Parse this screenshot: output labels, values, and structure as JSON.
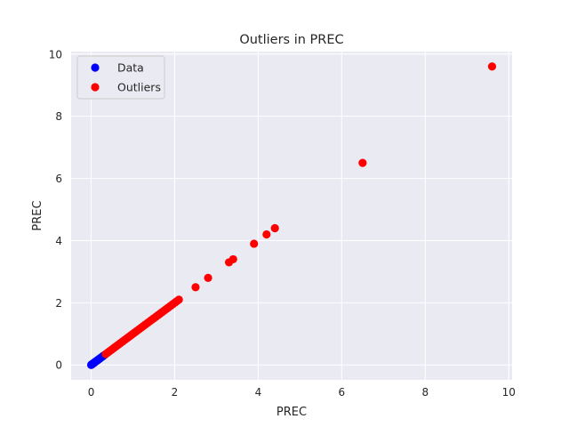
{
  "chart_data": {
    "type": "scatter",
    "title": "Outliers in PREC",
    "xlabel": "PREC",
    "ylabel": "PREC",
    "xlim": [
      -0.48,
      10.08
    ],
    "ylim": [
      -0.48,
      10.08
    ],
    "xticks": [
      0,
      2,
      4,
      6,
      8,
      10
    ],
    "yticks": [
      0,
      2,
      4,
      6,
      8,
      10
    ],
    "grid": true,
    "legend_position": "top-left",
    "colors": {
      "background": "#eaeaf2",
      "grid": "#ffffff",
      "data": "#0000ff",
      "outliers": "#ff0000"
    },
    "series": [
      {
        "name": "Data",
        "color": "#0000ff",
        "points": [
          [
            0,
            0
          ],
          [
            0.01,
            0.01
          ],
          [
            0.02,
            0.02
          ],
          [
            0.03,
            0.03
          ],
          [
            0.04,
            0.04
          ],
          [
            0.05,
            0.05
          ],
          [
            0.06,
            0.06
          ],
          [
            0.07,
            0.07
          ],
          [
            0.08,
            0.08
          ],
          [
            0.1,
            0.1
          ],
          [
            0.12,
            0.12
          ],
          [
            0.14,
            0.14
          ],
          [
            0.16,
            0.16
          ],
          [
            0.18,
            0.18
          ],
          [
            0.2,
            0.2
          ],
          [
            0.22,
            0.22
          ],
          [
            0.25,
            0.25
          ],
          [
            0.28,
            0.28
          ],
          [
            0.31,
            0.31
          ]
        ]
      },
      {
        "name": "Outliers",
        "color": "#ff0000",
        "points": [
          [
            0.35,
            0.35
          ],
          [
            0.4,
            0.4
          ],
          [
            0.45,
            0.45
          ],
          [
            0.5,
            0.5
          ],
          [
            0.55,
            0.55
          ],
          [
            0.6,
            0.6
          ],
          [
            0.65,
            0.65
          ],
          [
            0.7,
            0.7
          ],
          [
            0.75,
            0.75
          ],
          [
            0.8,
            0.8
          ],
          [
            0.85,
            0.85
          ],
          [
            0.9,
            0.9
          ],
          [
            0.95,
            0.95
          ],
          [
            1.0,
            1.0
          ],
          [
            1.05,
            1.05
          ],
          [
            1.1,
            1.1
          ],
          [
            1.15,
            1.15
          ],
          [
            1.2,
            1.2
          ],
          [
            1.25,
            1.25
          ],
          [
            1.3,
            1.3
          ],
          [
            1.35,
            1.35
          ],
          [
            1.4,
            1.4
          ],
          [
            1.45,
            1.45
          ],
          [
            1.5,
            1.5
          ],
          [
            1.55,
            1.55
          ],
          [
            1.6,
            1.6
          ],
          [
            1.65,
            1.65
          ],
          [
            1.7,
            1.7
          ],
          [
            1.75,
            1.75
          ],
          [
            1.8,
            1.8
          ],
          [
            1.85,
            1.85
          ],
          [
            1.9,
            1.9
          ],
          [
            1.95,
            1.95
          ],
          [
            2.0,
            2.0
          ],
          [
            2.05,
            2.05
          ],
          [
            2.1,
            2.1
          ],
          [
            2.5,
            2.5
          ],
          [
            2.8,
            2.8
          ],
          [
            3.3,
            3.3
          ],
          [
            3.4,
            3.4
          ],
          [
            3.9,
            3.9
          ],
          [
            4.2,
            4.2
          ],
          [
            4.4,
            4.4
          ],
          [
            6.5,
            6.5
          ],
          [
            9.6,
            9.6
          ]
        ]
      }
    ]
  }
}
